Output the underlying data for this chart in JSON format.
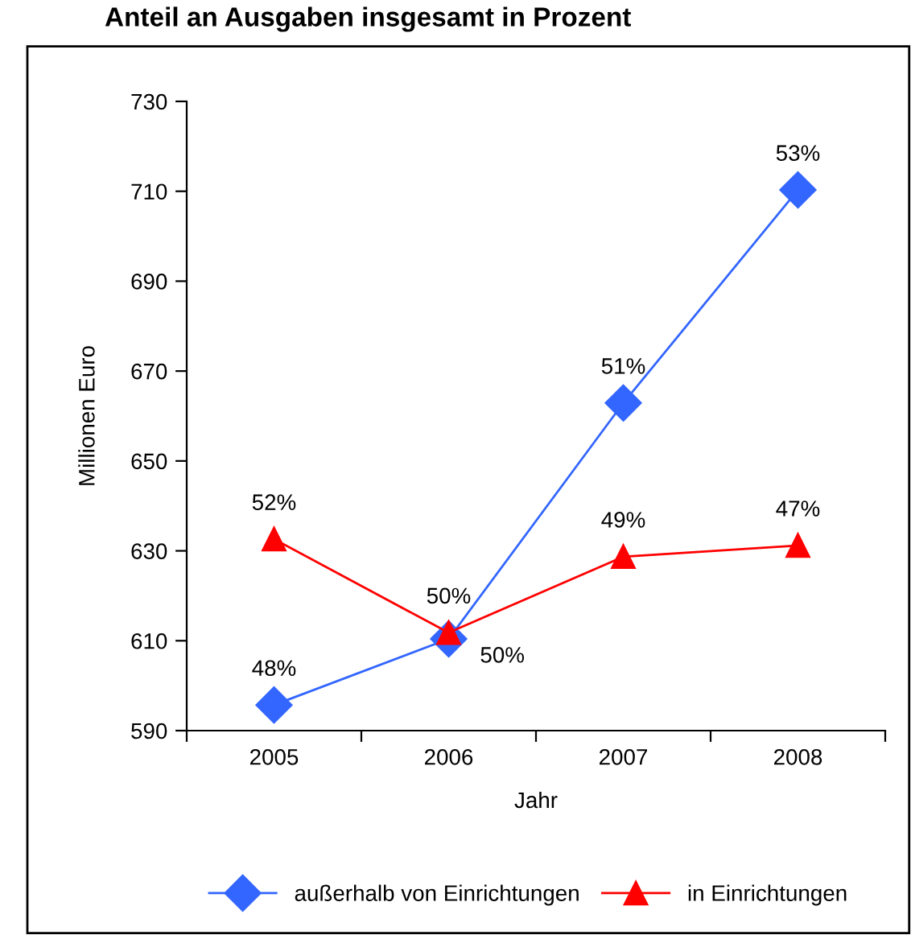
{
  "chart_data": {
    "type": "line",
    "title": "Anteil an Ausgaben insgesamt in Prozent",
    "xlabel": "Jahr",
    "ylabel": "Millionen Euro",
    "categories": [
      "2005",
      "2006",
      "2007",
      "2008"
    ],
    "series": [
      {
        "name": "außerhalb von Einrichtungen",
        "color": "#3366ff",
        "marker": "diamond",
        "values": [
          595.7,
          610.4,
          662.9,
          710.3
        ]
      },
      {
        "name": "in Einrichtungen",
        "color": "#ff0000",
        "marker": "triangle",
        "values": [
          632.6,
          611.8,
          628.7,
          631.2
        ]
      }
    ],
    "annotations": [
      {
        "text": "48%",
        "x": "2005",
        "y": 595.7
      },
      {
        "text": "50%",
        "x": "2006",
        "y": 610.4
      },
      {
        "text": "51%",
        "x": "2007",
        "y": 662.9
      },
      {
        "text": "53%",
        "x": "2008",
        "y": 710.3
      },
      {
        "text": "52%",
        "x": "2005",
        "y": 632.6
      },
      {
        "text": "50%",
        "x": "2006",
        "y": 611.8
      },
      {
        "text": "49%",
        "x": "2007",
        "y": 628.7
      },
      {
        "text": "47%",
        "x": "2008",
        "y": 631.2
      }
    ],
    "ylim": [
      590,
      730
    ],
    "yticks": [
      590,
      610,
      630,
      650,
      670,
      690,
      710,
      730
    ],
    "grid": false,
    "legend": "bottom",
    "line_style": "solid"
  }
}
